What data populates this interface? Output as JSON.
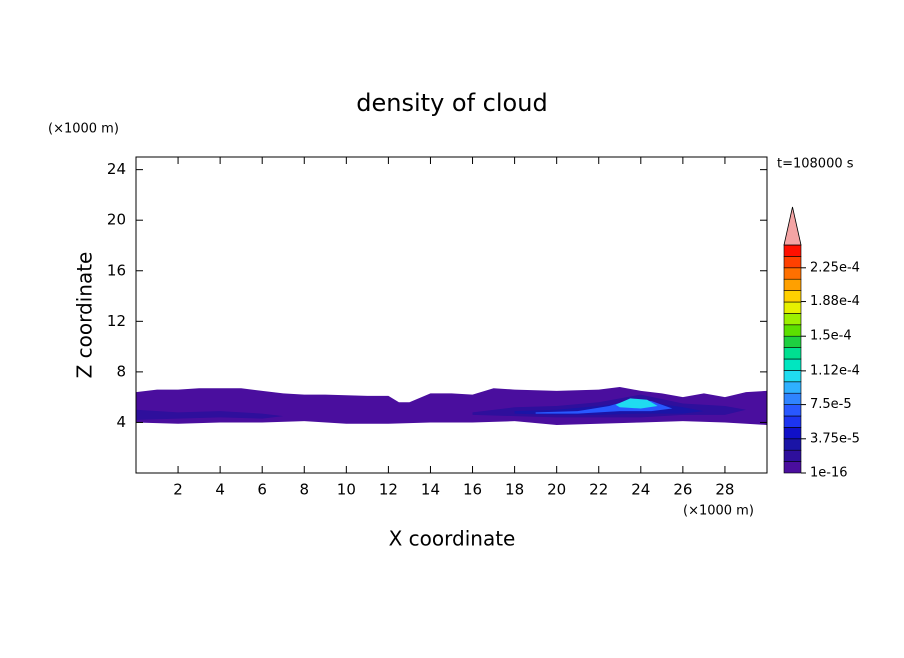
{
  "chart_data": {
    "type": "contour",
    "title": "density of cloud",
    "x_label": "X coordinate",
    "y_label": "Z coordinate",
    "x_unit": "(×1000 m)",
    "y_unit": "(×1000 m)",
    "time_label": "t=108000 s",
    "xlim": [
      0,
      30
    ],
    "ylim": [
      0,
      25
    ],
    "xticks": [
      2,
      4,
      6,
      8,
      10,
      12,
      14,
      16,
      18,
      20,
      22,
      24,
      26,
      28
    ],
    "yticks": [
      4,
      8,
      12,
      16,
      20,
      24
    ],
    "colorbar": {
      "lim": [
        0,
        0.00025
      ],
      "colors": [
        "#4a0e9e",
        "#2e0f9c",
        "#1a14a6",
        "#1010c8",
        "#1c34f0",
        "#2858ff",
        "#2f84ff",
        "#2fb0ff",
        "#20dcf0",
        "#00e6c0",
        "#00e090",
        "#1ed040",
        "#5ce000",
        "#9cf000",
        "#e6f000",
        "#ffd000",
        "#ffa000",
        "#ff7000",
        "#ff4000",
        "#ff1000"
      ],
      "extend_color": "#f4a4a4",
      "ticks": [
        {
          "value": 1e-16,
          "label": "1e-16"
        },
        {
          "value": 3.75e-05,
          "label": "3.75e-5"
        },
        {
          "value": 7.5e-05,
          "label": "7.5e-5"
        },
        {
          "value": 0.000112,
          "label": "1.12e-4"
        },
        {
          "value": 0.00015,
          "label": "1.5e-4"
        },
        {
          "value": 0.000188,
          "label": "1.88e-4"
        },
        {
          "value": 0.000225,
          "label": "2.25e-4"
        }
      ]
    },
    "contours": [
      {
        "level": 1e-16,
        "x": [
          0,
          1,
          2,
          3,
          5,
          6,
          7,
          8,
          9,
          11,
          12,
          12.5,
          13,
          14,
          15,
          16,
          17,
          18,
          20,
          22,
          23,
          24,
          25,
          26,
          27,
          28,
          29,
          30,
          30,
          28,
          26,
          24,
          22,
          20,
          18,
          16,
          14,
          12,
          10,
          8,
          6,
          4,
          2,
          0
        ],
        "z": [
          6.4,
          6.6,
          6.6,
          6.7,
          6.7,
          6.5,
          6.3,
          6.2,
          6.2,
          6.1,
          6.1,
          5.6,
          5.6,
          6.3,
          6.3,
          6.2,
          6.7,
          6.6,
          6.5,
          6.6,
          6.8,
          6.5,
          6.3,
          6.0,
          6.3,
          6.0,
          6.4,
          6.5,
          3.8,
          4.0,
          4.1,
          4.0,
          3.9,
          3.8,
          4.1,
          4.0,
          4.0,
          3.9,
          3.9,
          4.1,
          4.0,
          4.0,
          3.9,
          4.0
        ]
      },
      {
        "level": 1.25e-05,
        "x": [
          0,
          2,
          4,
          6,
          7,
          6,
          4,
          2,
          0
        ],
        "z": [
          5.0,
          4.8,
          4.9,
          4.7,
          4.5,
          4.3,
          4.4,
          4.3,
          4.2
        ]
      },
      {
        "level": 1.25e-05,
        "x": [
          16,
          18,
          20,
          22,
          24,
          26,
          28,
          29,
          28,
          26,
          24,
          22,
          20,
          18,
          16
        ],
        "z": [
          4.8,
          5.2,
          5.3,
          5.6,
          6.2,
          5.5,
          5.3,
          5.0,
          4.6,
          4.6,
          4.4,
          4.4,
          4.4,
          4.5,
          4.6
        ]
      },
      {
        "level": 3.75e-05,
        "x": [
          18,
          20,
          22,
          24,
          26,
          27,
          26,
          24,
          22,
          20,
          18
        ],
        "z": [
          4.9,
          5.0,
          5.3,
          5.7,
          5.2,
          4.9,
          4.7,
          4.7,
          4.6,
          4.6,
          4.7
        ]
      },
      {
        "level": 7.5e-05,
        "x": [
          19,
          21,
          22.5,
          23.5,
          24.5,
          25.5,
          24.5,
          23,
          21,
          19
        ],
        "z": [
          4.8,
          4.9,
          5.3,
          5.8,
          5.7,
          5.1,
          4.9,
          4.9,
          4.7,
          4.7
        ]
      },
      {
        "level": 0.0001,
        "x": [
          22.8,
          23.5,
          24.3,
          24.8,
          24.0,
          23.0
        ],
        "z": [
          5.4,
          5.9,
          5.8,
          5.3,
          5.1,
          5.2
        ]
      }
    ]
  }
}
